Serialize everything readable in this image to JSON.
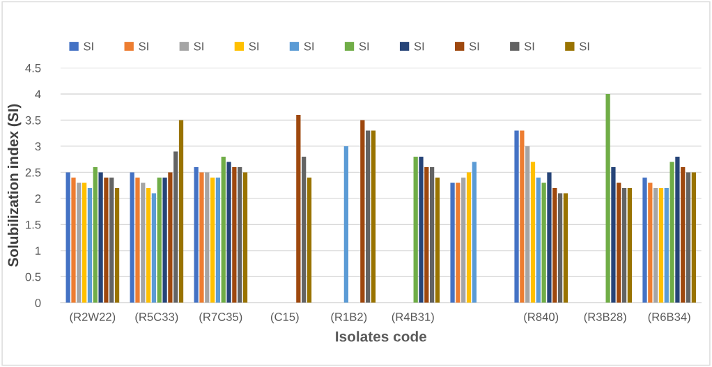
{
  "chart_data": {
    "type": "bar",
    "xlabel": "Isolates code",
    "ylabel": "Solubilization index (SI)",
    "categories": [
      "(R2W22)",
      "(R5C33)",
      "(R7C35)",
      "(C15)",
      "(R1B2)",
      "(R4B31)",
      null,
      "(R840)",
      "(R3B28)",
      "(R6B34)"
    ],
    "ylim": [
      0,
      4.5
    ],
    "yticks": [
      0,
      0.5,
      1,
      1.5,
      2,
      2.5,
      3,
      3.5,
      4,
      4.5
    ],
    "grid": "y",
    "legend": "top",
    "series": [
      {
        "name": "SI",
        "color": "#4472c4",
        "values": [
          2.5,
          2.5,
          2.6,
          null,
          null,
          null,
          2.3,
          3.3,
          null,
          2.4
        ]
      },
      {
        "name": "SI",
        "color": "#ed7d31",
        "values": [
          2.4,
          2.4,
          2.5,
          null,
          null,
          null,
          2.3,
          3.3,
          null,
          2.3
        ]
      },
      {
        "name": "SI",
        "color": "#a5a5a5",
        "values": [
          2.3,
          2.3,
          2.5,
          null,
          null,
          null,
          2.4,
          3.0,
          null,
          2.2
        ]
      },
      {
        "name": "SI",
        "color": "#ffc000",
        "values": [
          2.3,
          2.2,
          2.4,
          null,
          null,
          null,
          2.5,
          2.7,
          null,
          2.2
        ]
      },
      {
        "name": "SI",
        "color": "#5b9bd5",
        "values": [
          2.2,
          2.1,
          2.4,
          null,
          3.0,
          null,
          2.7,
          2.4,
          null,
          2.2
        ]
      },
      {
        "name": "SI",
        "color": "#70ad47",
        "values": [
          2.6,
          2.4,
          2.8,
          null,
          null,
          2.8,
          null,
          2.3,
          4.0,
          2.7
        ]
      },
      {
        "name": "SI",
        "color": "#264478",
        "values": [
          2.5,
          2.4,
          2.7,
          null,
          null,
          2.8,
          null,
          2.5,
          2.6,
          2.8
        ]
      },
      {
        "name": "SI",
        "color": "#9e480e",
        "values": [
          2.4,
          2.5,
          2.6,
          3.6,
          3.5,
          2.6,
          null,
          2.2,
          2.3,
          2.6
        ]
      },
      {
        "name": "SI",
        "color": "#636363",
        "values": [
          2.4,
          2.9,
          2.6,
          2.8,
          3.3,
          2.6,
          null,
          2.1,
          2.2,
          2.5
        ]
      },
      {
        "name": "SI",
        "color": "#997300",
        "values": [
          2.2,
          3.5,
          2.5,
          2.4,
          3.3,
          2.4,
          null,
          2.1,
          2.2,
          2.5
        ]
      }
    ]
  }
}
